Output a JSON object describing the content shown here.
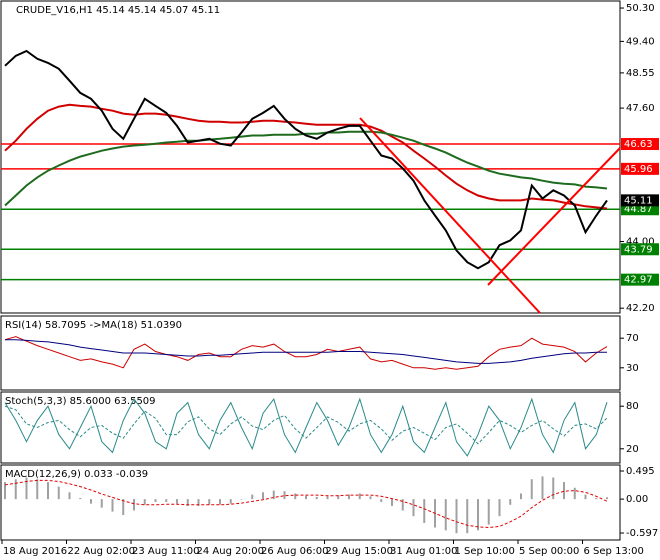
{
  "chart_data": [
    {
      "type": "line",
      "title": "CRUDE_V16,H1  45.14 45.14 45.07 45.11",
      "categories": [
        "18 Aug 2016",
        null,
        null,
        null,
        null,
        null,
        "22 Aug 02:00",
        null,
        null,
        null,
        null,
        null,
        "23 Aug 11:00",
        null,
        null,
        null,
        null,
        null,
        "24 Aug 20:00",
        null,
        null,
        null,
        null,
        null,
        "26 Aug 06:00",
        null,
        null,
        null,
        null,
        null,
        "29 Aug 15:00",
        null,
        null,
        null,
        null,
        null,
        "31 Aug 01:00",
        null,
        null,
        null,
        null,
        null,
        "1 Sep 10:00",
        null,
        null,
        null,
        null,
        null,
        "5 Sep 00:00",
        null,
        null,
        null,
        null,
        null,
        "6 Sep 13:00",
        null,
        null
      ],
      "series": [
        {
          "color": "#d00000",
          "values": [
            46.45,
            46.72,
            47.04,
            47.31,
            47.53,
            47.64,
            47.69,
            47.66,
            47.64,
            47.58,
            47.53,
            47.45,
            47.42,
            47.45,
            47.45,
            47.42,
            47.37,
            47.31,
            47.26,
            47.23,
            47.23,
            47.21,
            47.21,
            47.23,
            47.26,
            47.26,
            47.23,
            47.21,
            47.18,
            47.15,
            47.15,
            47.15,
            47.15,
            47.15,
            47.1,
            46.99,
            46.83,
            46.67,
            46.45,
            46.24,
            46.02,
            45.78,
            45.56,
            45.38,
            45.24,
            45.16,
            45.11,
            45.11,
            45.11,
            45.16,
            45.13,
            45.11,
            45.05,
            45.0,
            44.95,
            44.92,
            44.89
          ]
        },
        {
          "color": "#1e6b1e",
          "values": [
            44.97,
            45.24,
            45.51,
            45.73,
            45.91,
            46.05,
            46.18,
            46.29,
            46.37,
            46.45,
            46.51,
            46.56,
            46.59,
            46.61,
            46.64,
            46.67,
            46.69,
            46.72,
            46.72,
            46.75,
            46.77,
            46.8,
            46.83,
            46.86,
            46.86,
            46.88,
            46.88,
            46.88,
            46.91,
            46.91,
            46.94,
            46.94,
            46.96,
            46.96,
            46.96,
            46.94,
            46.88,
            46.8,
            46.72,
            46.61,
            46.51,
            46.4,
            46.26,
            46.13,
            46.02,
            45.91,
            45.83,
            45.78,
            45.73,
            45.7,
            45.64,
            45.59,
            45.56,
            45.54,
            45.48,
            45.46,
            45.43
          ]
        },
        {
          "color": "#000000",
          "values": [
            48.74,
            49.01,
            49.14,
            48.93,
            48.82,
            48.66,
            48.34,
            48.01,
            47.85,
            47.53,
            47.04,
            46.77,
            47.31,
            47.85,
            47.66,
            47.47,
            47.12,
            46.67,
            46.72,
            46.77,
            46.64,
            46.59,
            46.94,
            47.31,
            47.47,
            47.66,
            47.31,
            47.04,
            46.86,
            46.77,
            46.94,
            47.04,
            47.12,
            47.12,
            46.72,
            46.32,
            46.24,
            45.97,
            45.64,
            45.11,
            44.7,
            44.3,
            43.76,
            43.44,
            43.28,
            43.44,
            43.9,
            44.03,
            44.3,
            45.51,
            45.16,
            45.38,
            45.24,
            44.97,
            44.25,
            44.7,
            45.11
          ]
        }
      ],
      "ylim": [
        42.07,
        50.49
      ],
      "yticks": [
        {
          "value": 50.3,
          "label": "50.30"
        },
        {
          "value": 49.4,
          "label": "49.40"
        },
        48.55,
        {
          "value": 47.6,
          "label": "47.60"
        },
        {
          "value": 44,
          "label": "44.00"
        },
        {
          "value": 42.2,
          "label": "42.20"
        }
      ],
      "levels": [
        {
          "value": 46.63,
          "label": "46.63",
          "color": "#ff0000"
        },
        {
          "value": 45.96,
          "label": "45.96",
          "color": "#ff0000"
        },
        {
          "value": 44.87,
          "label": "44.87",
          "color": "#008000"
        },
        {
          "value": 43.79,
          "label": "43.79",
          "color": "#008000"
        },
        {
          "value": 42.97,
          "label": "42.97",
          "color": "#008000"
        }
      ],
      "last_price": {
        "value": 45.11,
        "label": "45.11"
      }
    },
    {
      "type": "line",
      "title": "RSI(14) 58.7095 ->MA(18) 51.0390",
      "series": [
        {
          "color": "#cc0000",
          "values": [
            68,
            72,
            66,
            60,
            55,
            50,
            45,
            40,
            42,
            38,
            35,
            30,
            55,
            62,
            52,
            48,
            45,
            40,
            48,
            50,
            45,
            45,
            55,
            60,
            58,
            62,
            52,
            45,
            45,
            48,
            55,
            52,
            55,
            58,
            42,
            38,
            40,
            35,
            30,
            30,
            28,
            30,
            28,
            30,
            32,
            45,
            55,
            58,
            60,
            70,
            62,
            60,
            58,
            52,
            38,
            50,
            58.7095
          ]
        },
        {
          "color": "#00007f",
          "values": [
            68,
            68,
            67,
            66,
            65,
            63,
            61,
            58,
            56,
            54,
            52,
            50,
            50,
            50,
            49,
            48,
            47,
            46,
            46,
            47,
            47,
            48,
            49,
            50,
            51,
            51,
            51,
            51,
            51,
            51,
            51,
            52,
            52,
            52,
            51,
            50,
            49,
            48,
            46,
            44,
            42,
            40,
            38,
            37,
            36,
            36,
            37,
            38,
            40,
            43,
            45,
            47,
            49,
            50,
            50,
            51,
            51.039
          ]
        }
      ],
      "ylim": [
        0,
        100
      ],
      "yticks": [
        70,
        30
      ]
    },
    {
      "type": "line",
      "title": "Stoch(5,3,3) 85.6000 63.5509",
      "series": [
        {
          "color": "#2a8a8a",
          "values": [
            85,
            60,
            30,
            60,
            80,
            40,
            20,
            50,
            80,
            30,
            15,
            60,
            90,
            70,
            30,
            20,
            70,
            85,
            40,
            20,
            60,
            85,
            50,
            20,
            70,
            90,
            40,
            15,
            50,
            85,
            60,
            25,
            50,
            90,
            40,
            15,
            40,
            80,
            30,
            15,
            50,
            85,
            30,
            10,
            40,
            80,
            60,
            20,
            50,
            90,
            40,
            15,
            60,
            85,
            20,
            40,
            85.6
          ]
        },
        {
          "color": "#2a8a8a",
          "dashed": true,
          "values": [
            80,
            75,
            55,
            50,
            57,
            60,
            47,
            37,
            50,
            53,
            42,
            35,
            55,
            73,
            63,
            40,
            40,
            58,
            65,
            48,
            40,
            55,
            65,
            52,
            47,
            60,
            67,
            48,
            35,
            50,
            65,
            57,
            45,
            55,
            60,
            48,
            32,
            45,
            50,
            42,
            33,
            50,
            55,
            42,
            27,
            43,
            60,
            53,
            43,
            53,
            60,
            48,
            38,
            53,
            55,
            48,
            63.5509
          ]
        }
      ],
      "ylim": [
        0,
        100
      ],
      "yticks": [
        80,
        20
      ]
    },
    {
      "type": "bar",
      "title": "MACD(12,26,9) 0.033 -0.039",
      "series": [
        {
          "color": "#a0a0a0",
          "values": [
            0.3,
            0.35,
            0.38,
            0.35,
            0.3,
            0.22,
            0.12,
            0.02,
            -0.08,
            -0.15,
            -0.22,
            -0.28,
            -0.2,
            -0.1,
            -0.05,
            -0.05,
            -0.08,
            -0.12,
            -0.12,
            -0.1,
            -0.1,
            -0.08,
            0,
            0.08,
            0.12,
            0.15,
            0.14,
            0.1,
            0.06,
            0.04,
            0.05,
            0.07,
            0.08,
            0.1,
            0.05,
            -0.05,
            -0.12,
            -0.2,
            -0.3,
            -0.42,
            -0.5,
            -0.55,
            -0.6,
            -0.6,
            -0.55,
            -0.45,
            -0.3,
            -0.1,
            0.1,
            0.35,
            0.4,
            0.38,
            0.3,
            0.2,
            0.08,
            0.02,
            0.033
          ]
        },
        {
          "type": "line",
          "color": "#e00000",
          "dashed": true,
          "values": [
            0.25,
            0.28,
            0.31,
            0.33,
            0.33,
            0.31,
            0.27,
            0.22,
            0.16,
            0.09,
            0.03,
            -0.03,
            -0.08,
            -0.1,
            -0.1,
            -0.09,
            -0.09,
            -0.1,
            -0.1,
            -0.1,
            -0.1,
            -0.09,
            -0.07,
            -0.04,
            -0.01,
            0.03,
            0.06,
            0.07,
            0.07,
            0.07,
            0.06,
            0.06,
            0.07,
            0.07,
            0.07,
            0.05,
            0.01,
            -0.04,
            -0.1,
            -0.17,
            -0.25,
            -0.33,
            -0.4,
            -0.46,
            -0.49,
            -0.5,
            -0.48,
            -0.4,
            -0.3,
            -0.15,
            -0.02,
            0.08,
            0.14,
            0.15,
            0.12,
            0.05,
            -0.039
          ]
        }
      ],
      "ylim": [
        -0.72,
        0.601
      ],
      "yticks": [
        0.495,
        {
          "value": 0,
          "label": "0.00"
        },
        -0.597
      ]
    }
  ]
}
